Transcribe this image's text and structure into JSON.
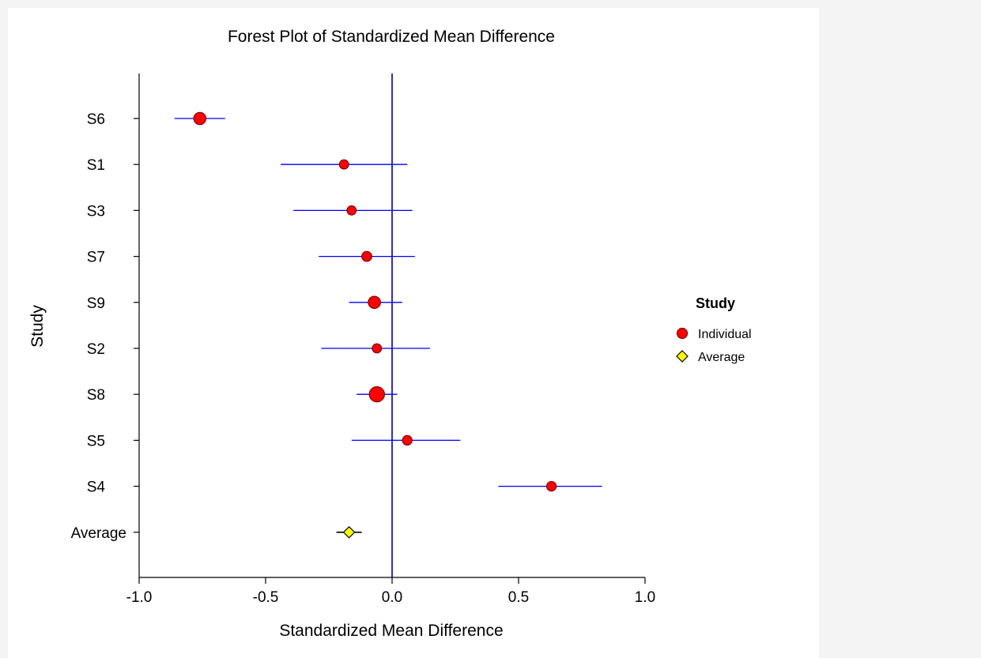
{
  "chart_data": {
    "type": "forest",
    "title": "Forest Plot of Standardized Mean Difference",
    "xlabel": "Standardized Mean Difference",
    "ylabel": "Study",
    "xlim": [
      -1.0,
      1.0
    ],
    "xticks": [
      -1.0,
      -0.5,
      0.0,
      0.5,
      1.0
    ],
    "xtick_labels": [
      "-1.0",
      "-0.5",
      "0.0",
      "0.5",
      "1.0"
    ],
    "reference_line": 0.0,
    "colors": {
      "individual": "#ff0000",
      "average": "#ffff00",
      "ci_line": "#0000ff",
      "reference_line": "#00008b"
    },
    "studies": [
      {
        "label": "S6",
        "effect": -0.76,
        "lower": -0.86,
        "upper": -0.66,
        "weight": 3
      },
      {
        "label": "S1",
        "effect": -0.19,
        "lower": -0.44,
        "upper": 0.06,
        "weight": 1
      },
      {
        "label": "S3",
        "effect": -0.16,
        "lower": -0.39,
        "upper": 0.08,
        "weight": 1
      },
      {
        "label": "S7",
        "effect": -0.1,
        "lower": -0.29,
        "upper": 0.09,
        "weight": 1.4
      },
      {
        "label": "S9",
        "effect": -0.07,
        "lower": -0.17,
        "upper": 0.04,
        "weight": 3
      },
      {
        "label": "S2",
        "effect": -0.06,
        "lower": -0.28,
        "upper": 0.15,
        "weight": 1
      },
      {
        "label": "S8",
        "effect": -0.06,
        "lower": -0.14,
        "upper": 0.02,
        "weight": 6
      },
      {
        "label": "S5",
        "effect": 0.06,
        "lower": -0.16,
        "upper": 0.27,
        "weight": 1.2
      },
      {
        "label": "S4",
        "effect": 0.63,
        "lower": 0.42,
        "upper": 0.83,
        "weight": 1.2
      }
    ],
    "average": {
      "label": "Average",
      "effect": -0.17,
      "lower": -0.22,
      "upper": -0.12
    },
    "legend": {
      "title": "Study",
      "placement": "right",
      "entries": [
        {
          "label": "Individual",
          "marker": "circle"
        },
        {
          "label": "Average",
          "marker": "diamond"
        }
      ]
    }
  }
}
